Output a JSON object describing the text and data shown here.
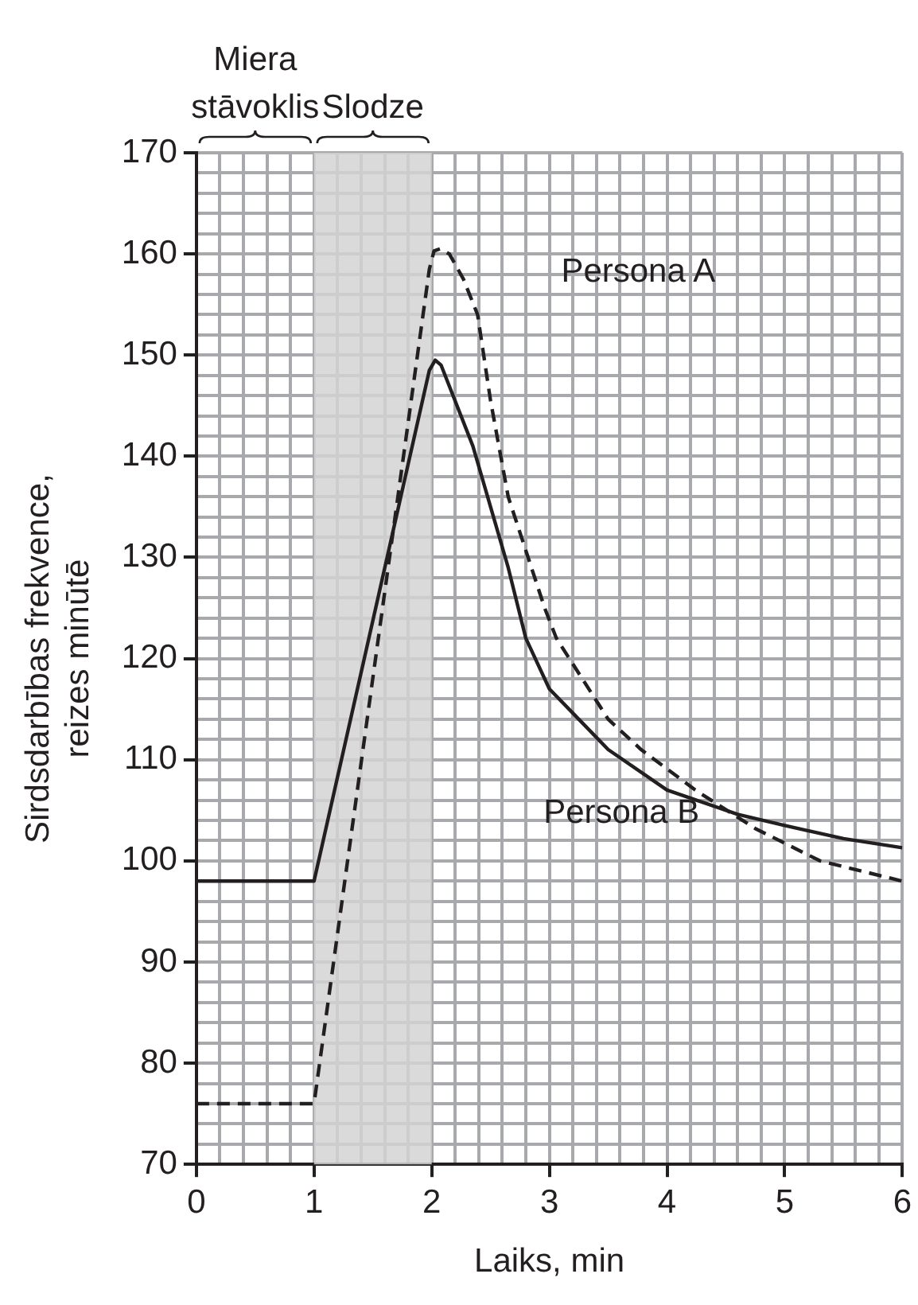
{
  "chart_data": {
    "type": "line",
    "xlabel": "Laiks, min",
    "ylabel": "Sirdsdarbības frekvence,\nreizes minūtē",
    "xlim": [
      0,
      6
    ],
    "ylim": [
      70,
      170
    ],
    "xticks": [
      0,
      {
        "value": 0.2,
        "label": null
      },
      {
        "value": 0.4,
        "label": null
      },
      {
        "value": 0.6,
        "label": null
      },
      {
        "value": 0.8,
        "label": null
      },
      1,
      {
        "value": 1.2,
        "label": null
      },
      {
        "value": 1.4,
        "label": null
      },
      {
        "value": 1.6,
        "label": null
      },
      {
        "value": 1.8,
        "label": null
      },
      2,
      {
        "value": 2.2,
        "label": null
      },
      {
        "value": 2.4,
        "label": null
      },
      {
        "value": 2.6,
        "label": null
      },
      {
        "value": 2.8,
        "label": null
      },
      3,
      {
        "value": 3.2,
        "label": null
      },
      {
        "value": 3.4,
        "label": null
      },
      {
        "value": 3.6,
        "label": null
      },
      {
        "value": 3.8,
        "label": null
      },
      4,
      {
        "value": 4.2,
        "label": null
      },
      {
        "value": 4.4,
        "label": null
      },
      {
        "value": 4.6,
        "label": null
      },
      {
        "value": 4.8,
        "label": null
      },
      5,
      {
        "value": 5.2,
        "label": null
      },
      {
        "value": 5.4,
        "label": null
      },
      {
        "value": 5.6,
        "label": null
      },
      {
        "value": 5.8,
        "label": null
      },
      6
    ],
    "yticks": [
      70,
      {
        "value": 72,
        "label": null
      },
      {
        "value": 74,
        "label": null
      },
      {
        "value": 76,
        "label": null
      },
      {
        "value": 78,
        "label": null
      },
      80,
      {
        "value": 82,
        "label": null
      },
      {
        "value": 84,
        "label": null
      },
      {
        "value": 86,
        "label": null
      },
      {
        "value": 88,
        "label": null
      },
      90,
      {
        "value": 92,
        "label": null
      },
      {
        "value": 94,
        "label": null
      },
      {
        "value": 96,
        "label": null
      },
      {
        "value": 98,
        "label": null
      },
      100,
      {
        "value": 102,
        "label": null
      },
      {
        "value": 104,
        "label": null
      },
      {
        "value": 106,
        "label": null
      },
      {
        "value": 108,
        "label": null
      },
      110,
      {
        "value": 112,
        "label": null
      },
      {
        "value": 114,
        "label": null
      },
      {
        "value": 116,
        "label": null
      },
      {
        "value": 118,
        "label": null
      },
      120,
      {
        "value": 122,
        "label": null
      },
      {
        "value": 124,
        "label": null
      },
      {
        "value": 126,
        "label": null
      },
      {
        "value": 128,
        "label": null
      },
      130,
      {
        "value": 132,
        "label": null
      },
      {
        "value": 134,
        "label": null
      },
      {
        "value": 136,
        "label": null
      },
      {
        "value": 138,
        "label": null
      },
      140,
      {
        "value": 142,
        "label": null
      },
      {
        "value": 144,
        "label": null
      },
      {
        "value": 146,
        "label": null
      },
      {
        "value": 148,
        "label": null
      },
      150,
      {
        "value": 152,
        "label": null
      },
      {
        "value": 154,
        "label": null
      },
      {
        "value": 156,
        "label": null
      },
      {
        "value": 158,
        "label": null
      },
      160,
      {
        "value": 162,
        "label": null
      },
      {
        "value": 164,
        "label": null
      },
      {
        "value": 166,
        "label": null
      },
      {
        "value": 168,
        "label": null
      },
      170
    ],
    "grid": true,
    "legend": false,
    "marker": "none",
    "series": [
      {
        "name": "Persona A",
        "color": "#231f20",
        "line_style": "dashed",
        "x": [
          0,
          1,
          1.98,
          2.02,
          2.07,
          2.15,
          2.27,
          2.39,
          2.5,
          2.65,
          2.96,
          3.06,
          3.5,
          3.78,
          4.24,
          4.75,
          5.3,
          6
        ],
        "values": [
          76,
          76,
          158.5,
          160.3,
          160.5,
          160,
          157.5,
          154,
          145.5,
          136,
          125,
          122,
          114,
          111,
          107,
          103.2,
          100,
          98
        ]
      },
      {
        "name": "Persona B",
        "color": "#231f20",
        "line_style": "solid",
        "x": [
          0,
          1,
          1.98,
          2.03,
          2.08,
          2.35,
          2.65,
          2.8,
          3.0,
          3.25,
          3.5,
          4,
          4.6,
          5,
          5.5,
          6
        ],
        "values": [
          98,
          98,
          148.5,
          149.5,
          149,
          141,
          129,
          122,
          117,
          114,
          111,
          107,
          104.6,
          103.5,
          102.2,
          101.3
        ]
      }
    ],
    "bands": [
      {
        "axis": "x",
        "from": 1,
        "to": 2,
        "label": "Slodze",
        "color": "#d3d3d3"
      }
    ],
    "annotations": [
      "Miera\nstāvoklis"
    ]
  }
}
